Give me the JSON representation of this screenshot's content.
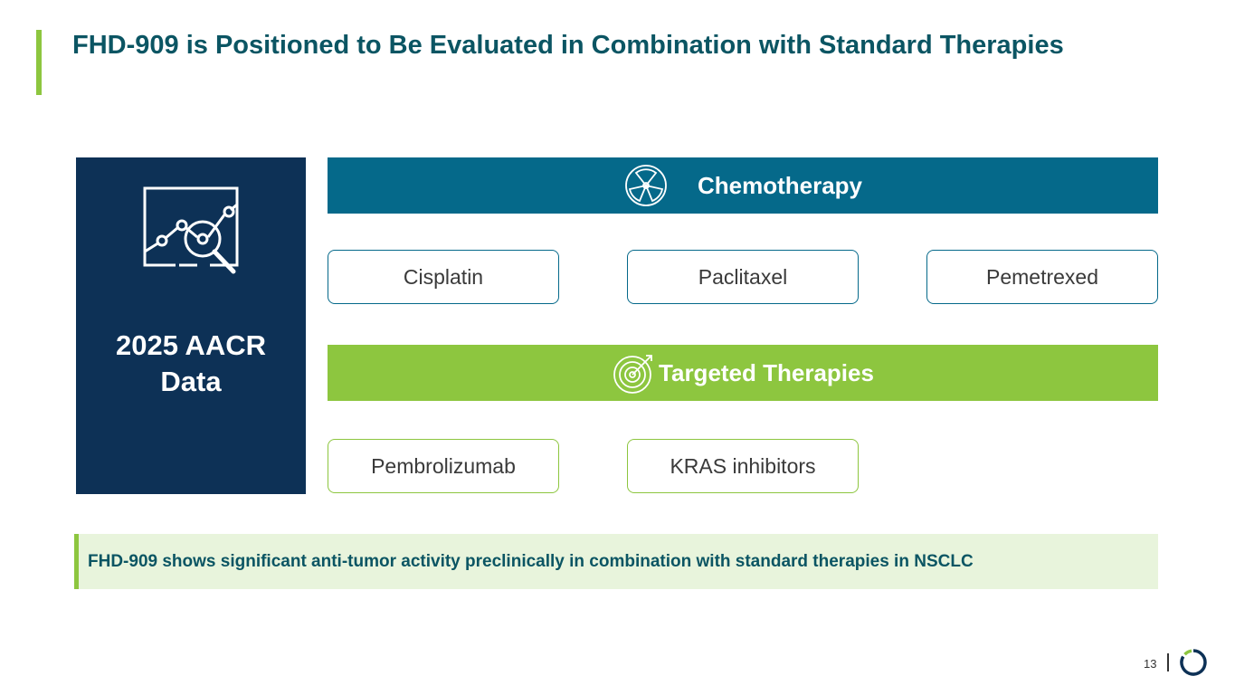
{
  "title": "FHD-909 is Positioned to Be Evaluated in Combination with Standard Therapies",
  "left_panel": {
    "label_line1": "2025 AACR",
    "label_line2": "Data",
    "icon": "chart-magnifier-icon"
  },
  "chemotherapy": {
    "label": "Chemotherapy",
    "icon": "radiation-icon",
    "items": [
      "Cisplatin",
      "Paclitaxel",
      "Pemetrexed"
    ]
  },
  "targeted": {
    "label": "Targeted Therapies",
    "icon": "target-icon",
    "items": [
      "Pembrolizumab",
      "KRAS inhibitors"
    ]
  },
  "callout": "FHD-909 shows significant anti-tumor activity preclinically in combination with standard therapies in NSCLC",
  "page_number": "13",
  "colors": {
    "title": "#0b5563",
    "navy": "#0d3156",
    "teal": "#05698a",
    "green": "#8dc63f"
  }
}
